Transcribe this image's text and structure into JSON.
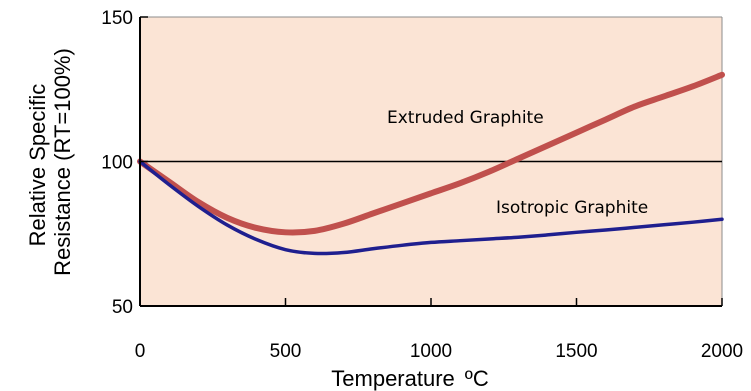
{
  "chart_data": {
    "type": "line",
    "xlabel": "Temperature",
    "xlabel_unit": "ºC",
    "ylabel_line1": "Relative Specific",
    "ylabel_line2": "Resistance (RT=100%)",
    "xlim": [
      0,
      2000
    ],
    "ylim": [
      50,
      150
    ],
    "x_ticks": [
      0,
      500,
      1000,
      1500,
      2000
    ],
    "y_ticks": [
      50,
      100,
      150
    ],
    "x_tick_labels": [
      "0",
      "500",
      "1000",
      "1500",
      "2000"
    ],
    "y_tick_labels": [
      "50",
      "100",
      "150"
    ],
    "reference_line_y": 100,
    "grid": false,
    "colors": {
      "plot_background": "#fbe4d5",
      "extruded": "#c0504d",
      "isotropic": "#1f1f8f",
      "reference_line": "#000000",
      "frame": "#8c8c8c"
    },
    "series": [
      {
        "name": "Extruded Graphite",
        "x": [
          0,
          100,
          200,
          300,
          400,
          500,
          600,
          700,
          800,
          900,
          1000,
          1100,
          1200,
          1300,
          1400,
          1500,
          1600,
          1700,
          1800,
          1900,
          2000
        ],
        "y": [
          100,
          93,
          86,
          80.5,
          77,
          75.5,
          76,
          78.5,
          82,
          85.5,
          89,
          92.5,
          96.5,
          101,
          105.5,
          110,
          114.5,
          119,
          122.5,
          126,
          130
        ]
      },
      {
        "name": "Isotropic Graphite",
        "x": [
          0,
          100,
          200,
          300,
          400,
          500,
          600,
          700,
          800,
          900,
          1000,
          1100,
          1200,
          1300,
          1400,
          1500,
          1600,
          1700,
          1800,
          1900,
          2000
        ],
        "y": [
          100,
          92,
          84.5,
          78,
          73,
          69.5,
          68.2,
          68.5,
          69.8,
          71,
          72,
          72.6,
          73.2,
          73.8,
          74.6,
          75.5,
          76.3,
          77.2,
          78.1,
          79,
          80
        ]
      }
    ]
  }
}
